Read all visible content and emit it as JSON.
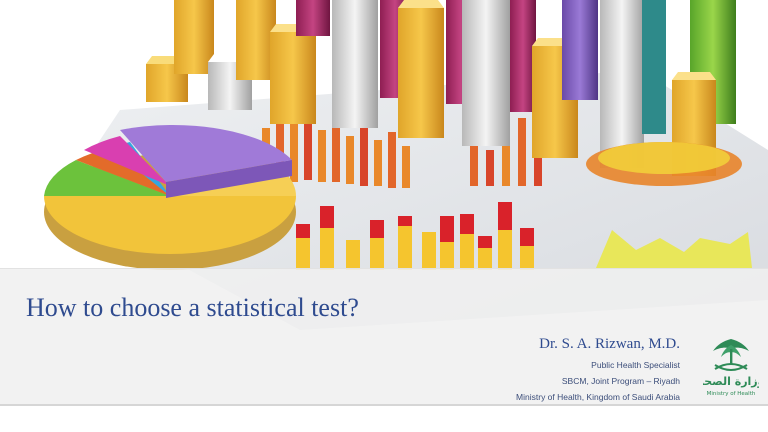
{
  "slide": {
    "title": "How to choose a statistical test?",
    "author": "Dr. S. A. Rizwan, M.D.",
    "affiliations": [
      "Public Health Specialist",
      "SBCM, Joint Program – Riyadh",
      "Ministry of Health, Kingdom of Saudi Arabia"
    ],
    "logo": {
      "arabic_text": "وزارة الصحة",
      "english_text": "Ministry of Health"
    }
  },
  "colors": {
    "title": "#2f4b8f",
    "band": "#f0f0f0",
    "logo_green": "#2e8b57"
  },
  "icons": [
    "bar-chart-illustration-icon",
    "pie-chart-illustration-icon",
    "palm-swords-emblem-icon"
  ]
}
